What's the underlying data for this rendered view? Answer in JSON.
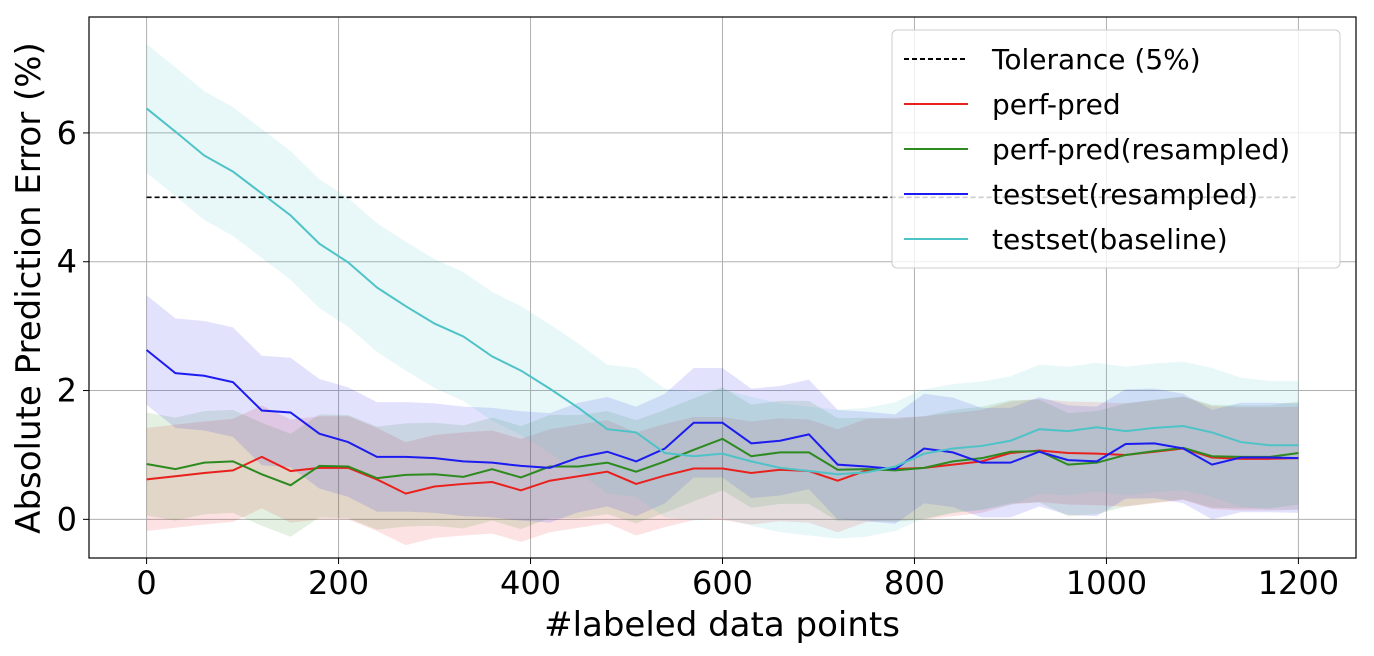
{
  "chart_data": {
    "type": "line",
    "title": "",
    "xlabel": "#labeled data points",
    "ylabel": "Absolute Prediction Error (%)",
    "xlim": [
      -60,
      1260
    ],
    "ylim": [
      -0.6,
      7.8
    ],
    "xticks": [
      0,
      200,
      400,
      600,
      800,
      1000,
      1200
    ],
    "yticks": [
      0,
      2,
      4,
      6
    ],
    "grid": true,
    "legend_position": "top-right",
    "tolerance": {
      "name": "Tolerance (5%)",
      "value": 5,
      "x_range": [
        0,
        1200
      ],
      "color": "#000000"
    },
    "x": [
      0,
      30,
      60,
      90,
      120,
      150,
      180,
      210,
      240,
      270,
      300,
      330,
      360,
      390,
      420,
      450,
      480,
      510,
      540,
      570,
      600,
      630,
      660,
      690,
      720,
      750,
      780,
      810,
      840,
      870,
      900,
      930,
      960,
      990,
      1020,
      1050,
      1080,
      1110,
      1140,
      1170,
      1200
    ],
    "series": [
      {
        "name": "perf-pred",
        "color": "#e8211c",
        "values": [
          0.62,
          0.67,
          0.72,
          0.76,
          0.97,
          0.75,
          0.8,
          0.8,
          0.62,
          0.4,
          0.51,
          0.55,
          0.58,
          0.45,
          0.6,
          0.67,
          0.74,
          0.55,
          0.68,
          0.79,
          0.79,
          0.72,
          0.77,
          0.75,
          0.6,
          0.76,
          0.78,
          0.8,
          0.85,
          0.9,
          1.03,
          1.07,
          1.03,
          1.02,
          1.0,
          1.05,
          1.1,
          0.96,
          0.94,
          0.94,
          0.95
        ],
        "band": 0.8
      },
      {
        "name": "perf-pred(resampled)",
        "color": "#2d8a1f",
        "values": [
          0.86,
          0.78,
          0.88,
          0.9,
          0.7,
          0.53,
          0.83,
          0.82,
          0.64,
          0.69,
          0.7,
          0.66,
          0.78,
          0.65,
          0.82,
          0.82,
          0.88,
          0.74,
          0.9,
          1.08,
          1.25,
          0.98,
          1.04,
          1.04,
          0.77,
          0.78,
          0.76,
          0.8,
          0.9,
          0.95,
          1.05,
          1.06,
          0.85,
          0.88,
          1.0,
          1.06,
          1.11,
          0.98,
          0.97,
          0.97,
          1.03
        ],
        "band": 0.8
      },
      {
        "name": "testset(resampled)",
        "color": "#1c1cf0",
        "values": [
          2.63,
          2.27,
          2.23,
          2.13,
          1.69,
          1.66,
          1.33,
          1.2,
          0.97,
          0.97,
          0.95,
          0.9,
          0.88,
          0.83,
          0.8,
          0.96,
          1.05,
          0.9,
          1.1,
          1.5,
          1.5,
          1.18,
          1.22,
          1.32,
          0.85,
          0.82,
          0.78,
          1.1,
          1.04,
          0.88,
          0.88,
          1.05,
          0.92,
          0.9,
          1.17,
          1.18,
          1.1,
          0.85,
          0.96,
          0.96,
          0.95
        ],
        "band": 0.85
      },
      {
        "name": "testset(baseline)",
        "color": "#4ec3c7",
        "values": [
          6.38,
          6.02,
          5.65,
          5.4,
          5.06,
          4.72,
          4.28,
          3.99,
          3.6,
          3.31,
          3.04,
          2.84,
          2.53,
          2.31,
          2.03,
          1.73,
          1.4,
          1.35,
          1.03,
          0.98,
          1.02,
          0.9,
          0.8,
          0.75,
          0.7,
          0.73,
          0.82,
          1.02,
          1.1,
          1.14,
          1.22,
          1.4,
          1.37,
          1.43,
          1.37,
          1.42,
          1.45,
          1.35,
          1.2,
          1.15,
          1.15
        ],
        "band": 1.0
      }
    ]
  }
}
